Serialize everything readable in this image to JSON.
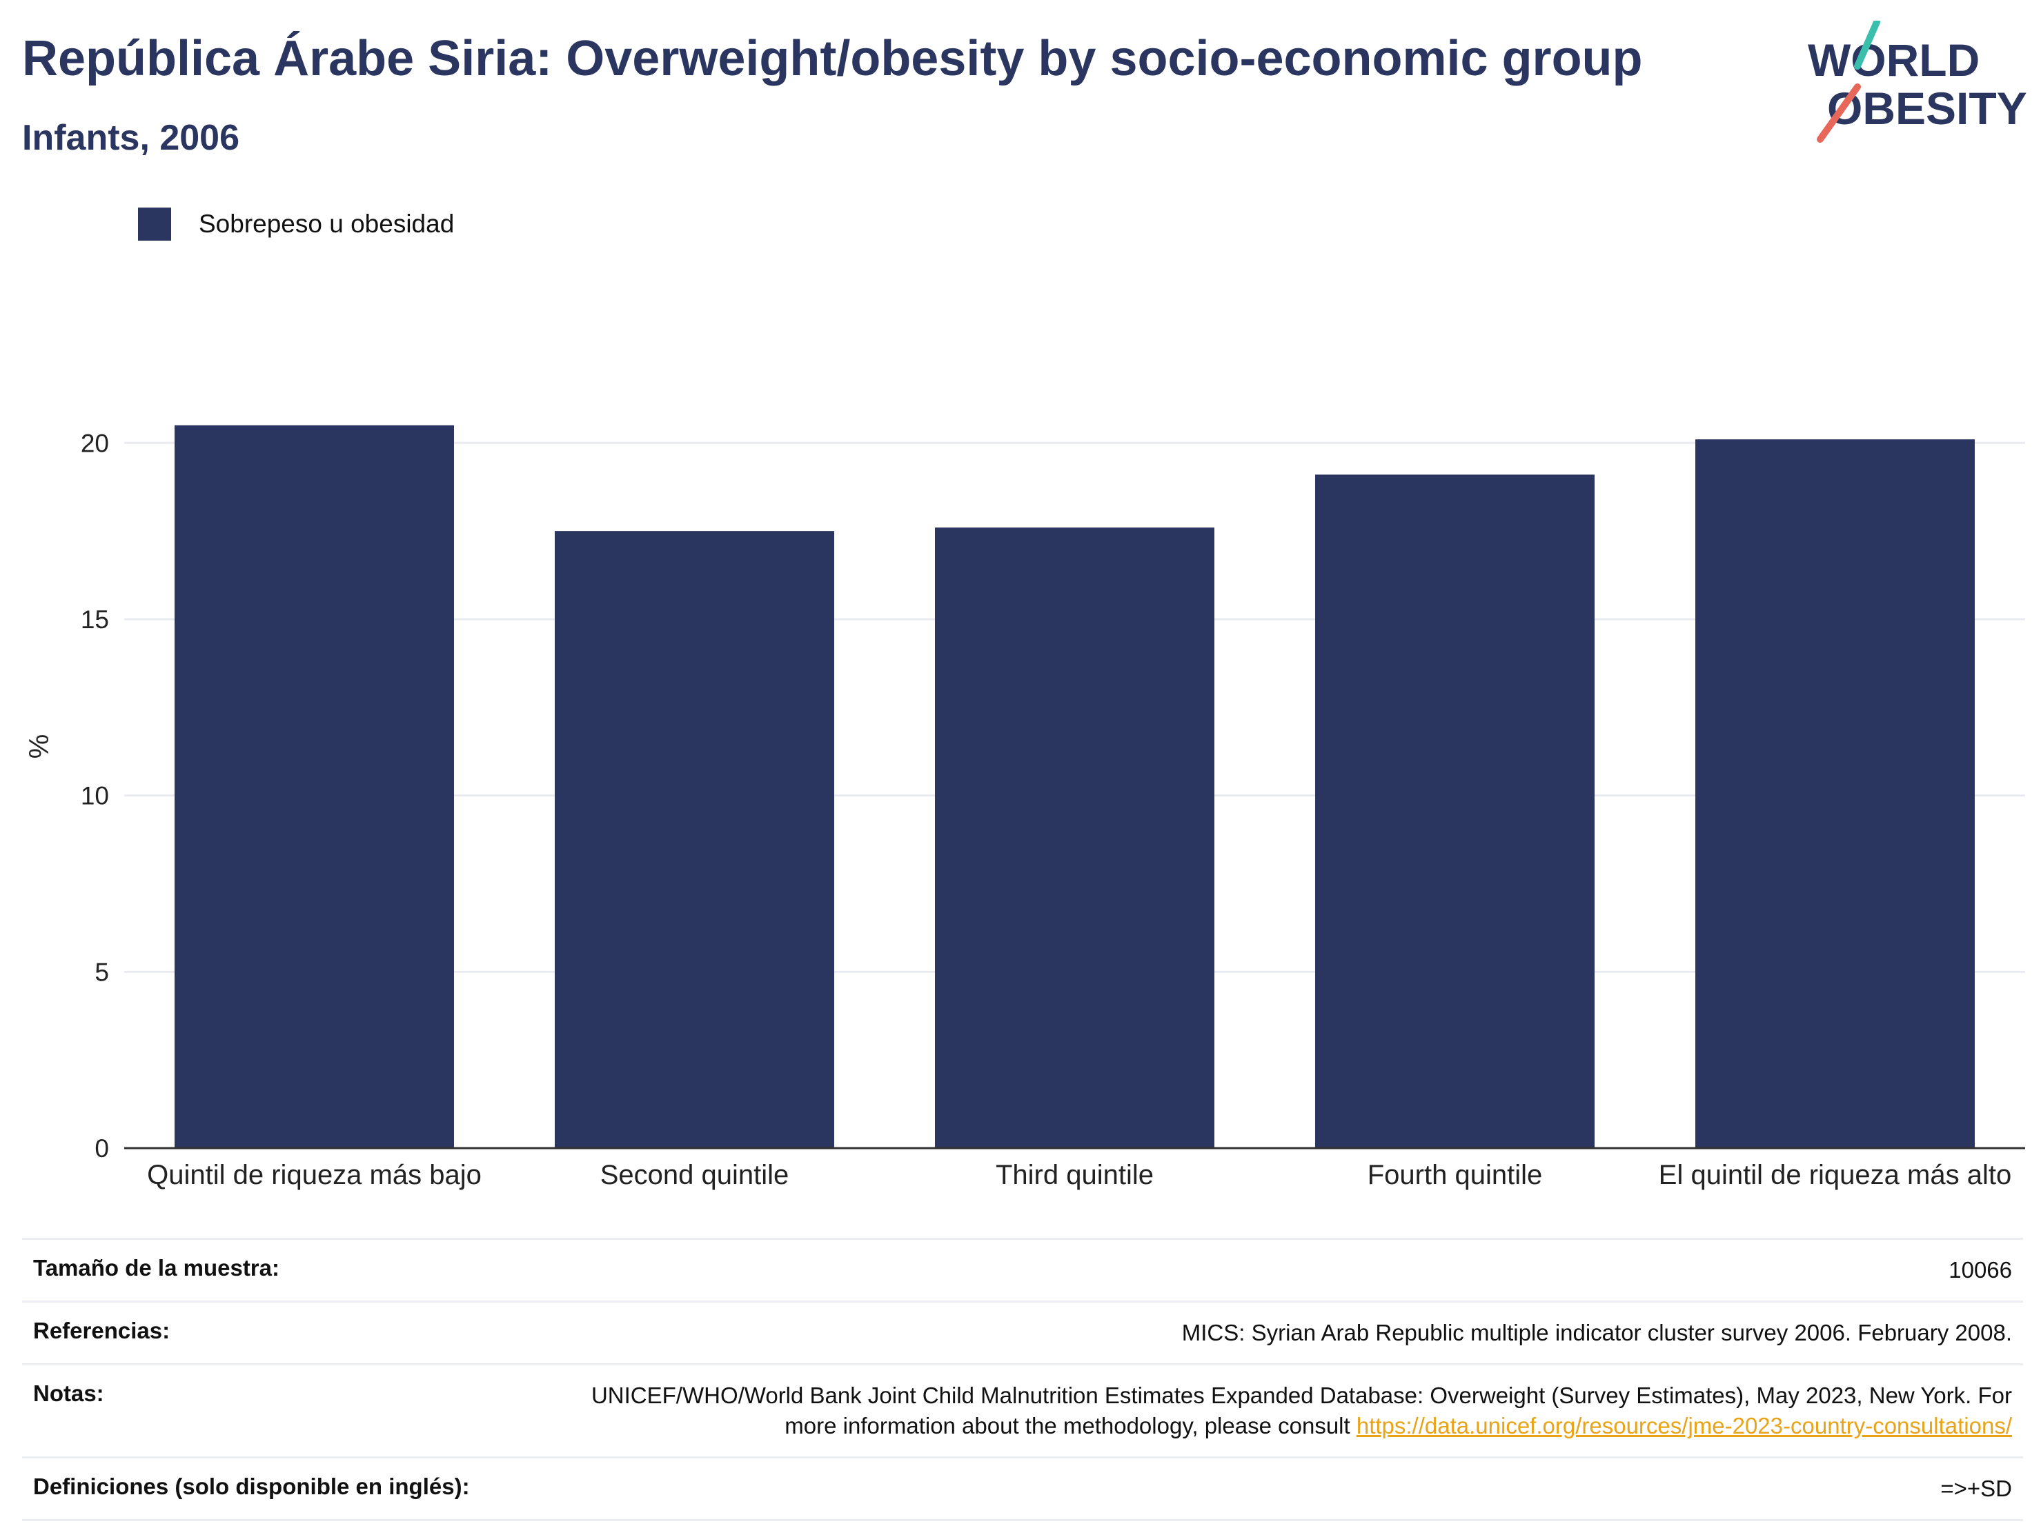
{
  "header": {
    "title": "República Árabe Siria: Overweight/obesity by socio-economic group",
    "subtitle": "Infants, 2006"
  },
  "logo": {
    "line1": "WORLD",
    "line2": "OBESITY",
    "accent_teal": "#3bbfad",
    "accent_red": "#e8675b",
    "text_color": "#2b3660"
  },
  "colors": {
    "bar": "#2b3660",
    "grid": "#e9ebf0",
    "axis": "#333333"
  },
  "chart_data": {
    "type": "bar",
    "categories": [
      "Quintil de riqueza más bajo",
      "Second quintile",
      "Third quintile",
      "Fourth quintile",
      "El quintil de riqueza más alto"
    ],
    "series": [
      {
        "name": "Sobrepeso u obesidad",
        "values": [
          20.5,
          17.5,
          17.6,
          19.1,
          20.1
        ],
        "color": "#2b3660"
      }
    ],
    "ylabel": "%",
    "xlabel": "",
    "ylim": [
      0,
      22
    ],
    "yticks": [
      0,
      5,
      10,
      15,
      20
    ],
    "grid": true,
    "legend": "top-left"
  },
  "info": {
    "sample_label": "Tamaño de la muestra:",
    "sample_value": "10066",
    "references_label": "Referencias:",
    "references_value": "MICS: Syrian Arab Republic multiple indicator cluster survey 2006. February 2008.",
    "notes_label": "Notas:",
    "notes_text": "UNICEF/WHO/World Bank Joint Child Malnutrition Estimates Expanded Database: Overweight (Survey Estimates), May 2023, New York. For more information about the methodology, please consult ",
    "notes_link": "https://data.unicef.org/resources/jme-2023-country-consultations/",
    "definitions_label": "Definiciones (solo disponible en inglés):",
    "definitions_value": "=>+SD"
  }
}
